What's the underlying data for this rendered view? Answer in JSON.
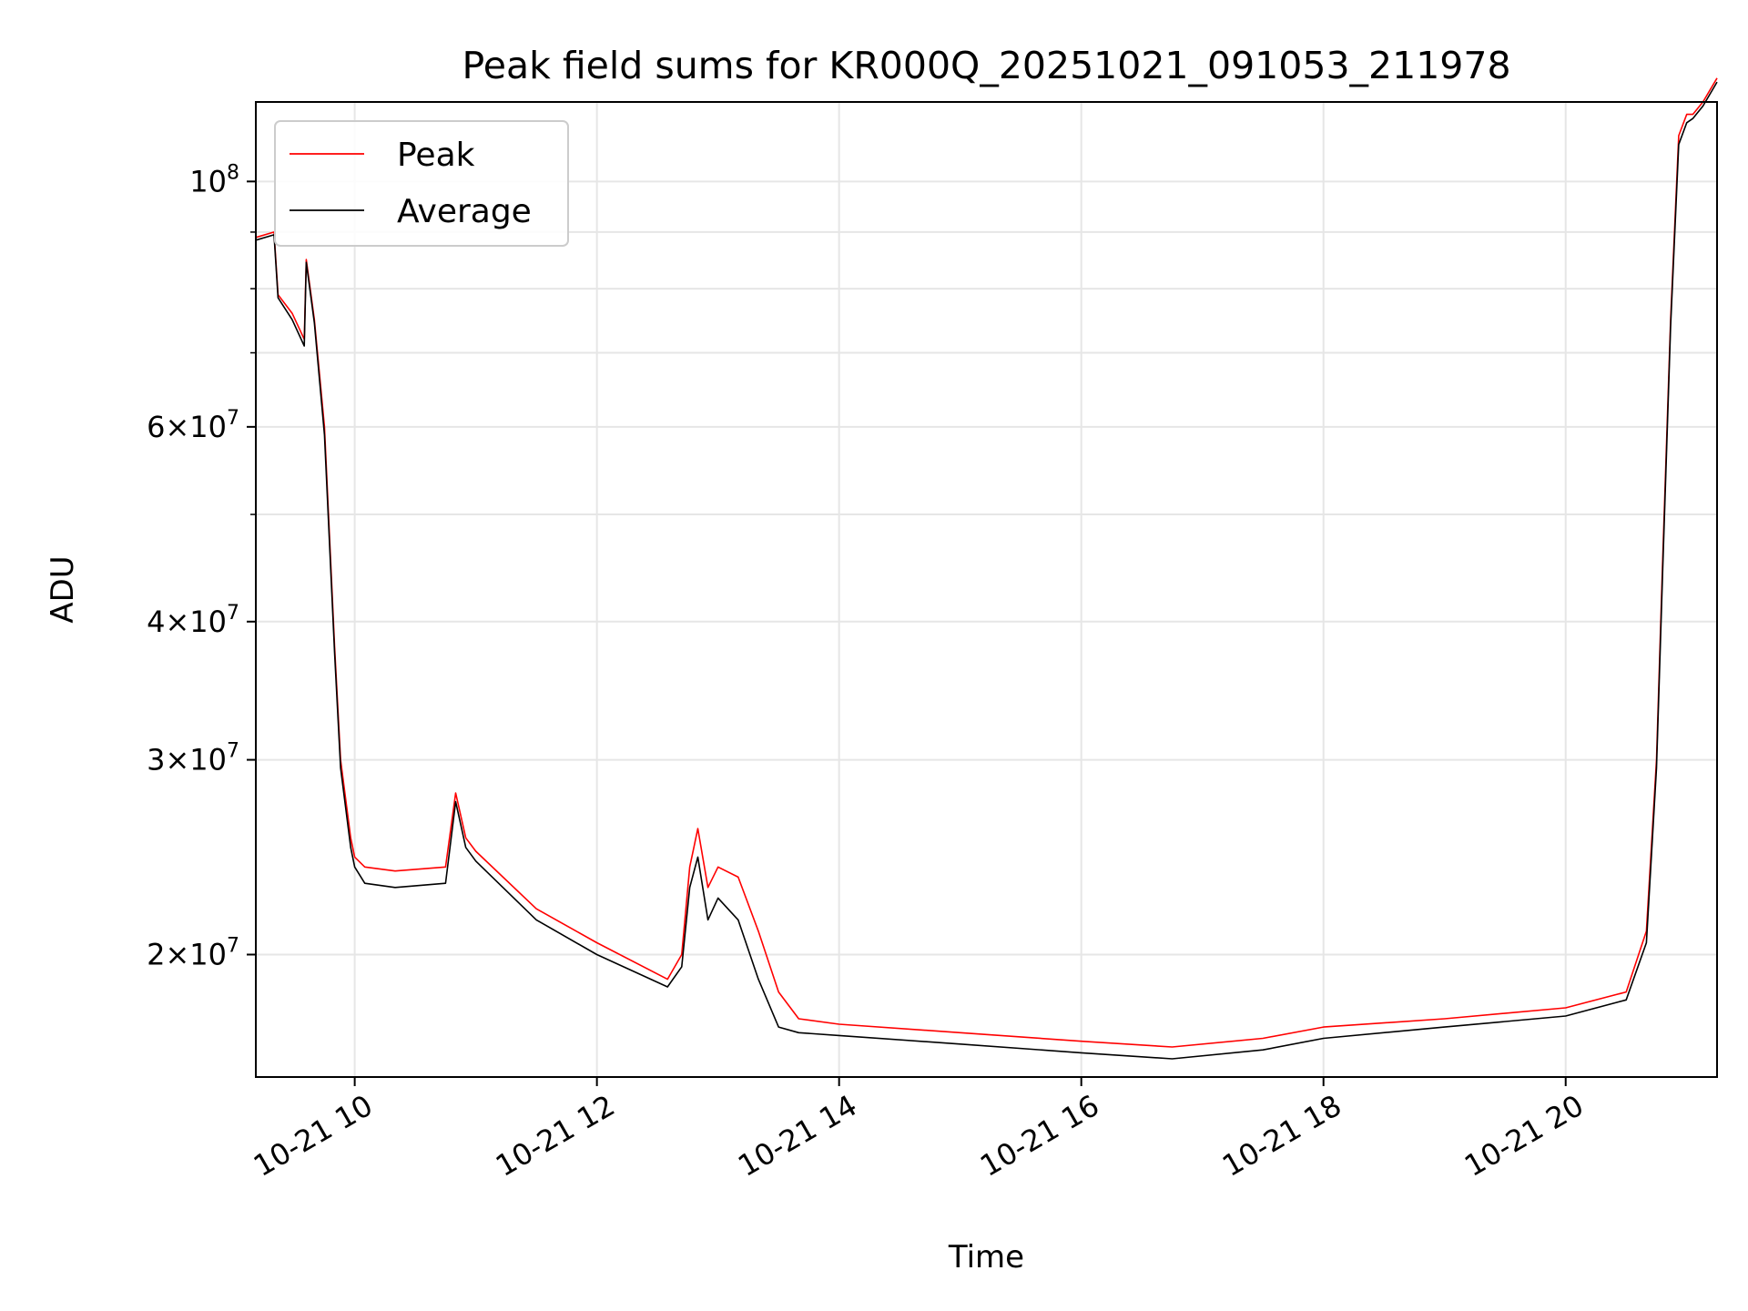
{
  "chart_data": {
    "type": "line",
    "title": "Peak field sums for KR000Q_20251021_091053_211978",
    "xlabel": "Time",
    "ylabel": "ADU",
    "y_scale": "log",
    "grid": true,
    "legend_position": "top-left",
    "xlim": [
      "2025-10-21 09:11",
      "2025-10-21 21:15"
    ],
    "ylim": [
      15500000,
      118000000
    ],
    "x_ticks": [
      {
        "value": "2025-10-21 10:00",
        "label": "10-21 10"
      },
      {
        "value": "2025-10-21 12:00",
        "label": "10-21 12"
      },
      {
        "value": "2025-10-21 14:00",
        "label": "10-21 14"
      },
      {
        "value": "2025-10-21 16:00",
        "label": "10-21 16"
      },
      {
        "value": "2025-10-21 18:00",
        "label": "10-21 18"
      },
      {
        "value": "2025-10-21 20:00",
        "label": "10-21 20"
      }
    ],
    "y_ticks": [
      {
        "value": 20000000,
        "base": "2",
        "exp": "7"
      },
      {
        "value": 30000000,
        "base": "3",
        "exp": "7"
      },
      {
        "value": 40000000,
        "base": "4",
        "exp": "7"
      },
      {
        "value": 60000000,
        "base": "6",
        "exp": "7"
      },
      {
        "value": 100000000,
        "base": "",
        "exp": "8"
      }
    ],
    "y_minor_ticks": [
      50000000,
      70000000,
      80000000,
      90000000
    ],
    "series": [
      {
        "name": "Peak",
        "color": "#ff0000",
        "x": [
          "2025-10-21 09:11",
          "2025-10-21 09:20",
          "2025-10-21 09:22",
          "2025-10-21 09:29",
          "2025-10-21 09:35",
          "2025-10-21 09:36",
          "2025-10-21 09:40",
          "2025-10-21 09:45",
          "2025-10-21 09:50",
          "2025-10-21 09:53",
          "2025-10-21 09:58",
          "2025-10-21 10:00",
          "2025-10-21 10:05",
          "2025-10-21 10:20",
          "2025-10-21 10:45",
          "2025-10-21 10:50",
          "2025-10-21 10:55",
          "2025-10-21 11:00",
          "2025-10-21 11:30",
          "2025-10-21 12:00",
          "2025-10-21 12:35",
          "2025-10-21 12:42",
          "2025-10-21 12:46",
          "2025-10-21 12:50",
          "2025-10-21 12:55",
          "2025-10-21 13:00",
          "2025-10-21 13:10",
          "2025-10-21 13:20",
          "2025-10-21 13:30",
          "2025-10-21 13:40",
          "2025-10-21 14:00",
          "2025-10-21 15:00",
          "2025-10-21 16:00",
          "2025-10-21 16:45",
          "2025-10-21 17:30",
          "2025-10-21 18:00",
          "2025-10-21 19:00",
          "2025-10-21 20:00",
          "2025-10-21 20:30",
          "2025-10-21 20:40",
          "2025-10-21 20:45",
          "2025-10-21 20:48",
          "2025-10-21 20:52",
          "2025-10-21 20:56",
          "2025-10-21 21:00",
          "2025-10-21 21:03",
          "2025-10-21 21:08",
          "2025-10-21 21:15"
        ],
        "values": [
          89000000,
          90000000,
          79000000,
          76000000,
          72000000,
          85000000,
          75000000,
          60000000,
          38000000,
          30000000,
          25500000,
          24500000,
          24000000,
          23800000,
          24000000,
          28000000,
          25500000,
          24800000,
          22000000,
          20500000,
          19000000,
          20000000,
          24000000,
          26000000,
          23000000,
          24000000,
          23500000,
          21000000,
          18500000,
          17500000,
          17300000,
          17000000,
          16700000,
          16500000,
          16800000,
          17200000,
          17500000,
          17900000,
          18500000,
          21000000,
          30000000,
          45000000,
          75000000,
          110000000,
          115000000,
          115000000,
          118000000,
          124000000
        ]
      },
      {
        "name": "Average",
        "color": "#000000",
        "x": [
          "2025-10-21 09:11",
          "2025-10-21 09:20",
          "2025-10-21 09:22",
          "2025-10-21 09:29",
          "2025-10-21 09:35",
          "2025-10-21 09:36",
          "2025-10-21 09:40",
          "2025-10-21 09:45",
          "2025-10-21 09:50",
          "2025-10-21 09:53",
          "2025-10-21 09:58",
          "2025-10-21 10:00",
          "2025-10-21 10:05",
          "2025-10-21 10:20",
          "2025-10-21 10:45",
          "2025-10-21 10:50",
          "2025-10-21 10:55",
          "2025-10-21 11:00",
          "2025-10-21 11:30",
          "2025-10-21 12:00",
          "2025-10-21 12:35",
          "2025-10-21 12:42",
          "2025-10-21 12:46",
          "2025-10-21 12:50",
          "2025-10-21 12:55",
          "2025-10-21 13:00",
          "2025-10-21 13:10",
          "2025-10-21 13:20",
          "2025-10-21 13:30",
          "2025-10-21 13:40",
          "2025-10-21 14:00",
          "2025-10-21 15:00",
          "2025-10-21 16:00",
          "2025-10-21 16:45",
          "2025-10-21 17:30",
          "2025-10-21 18:00",
          "2025-10-21 19:00",
          "2025-10-21 20:00",
          "2025-10-21 20:30",
          "2025-10-21 20:40",
          "2025-10-21 20:45",
          "2025-10-21 20:48",
          "2025-10-21 20:52",
          "2025-10-21 20:56",
          "2025-10-21 21:00",
          "2025-10-21 21:03",
          "2025-10-21 21:08",
          "2025-10-21 21:15"
        ],
        "values": [
          88500000,
          89500000,
          78500000,
          75000000,
          71000000,
          84500000,
          74500000,
          59000000,
          37500000,
          29500000,
          25000000,
          24000000,
          23200000,
          23000000,
          23200000,
          27500000,
          25000000,
          24300000,
          21500000,
          20000000,
          18700000,
          19500000,
          23000000,
          24500000,
          21500000,
          22500000,
          21500000,
          19000000,
          17200000,
          17000000,
          16900000,
          16600000,
          16300000,
          16100000,
          16400000,
          16800000,
          17200000,
          17600000,
          18200000,
          20500000,
          29500000,
          44000000,
          74000000,
          108000000,
          113000000,
          114000000,
          117000000,
          123000000
        ]
      }
    ]
  }
}
